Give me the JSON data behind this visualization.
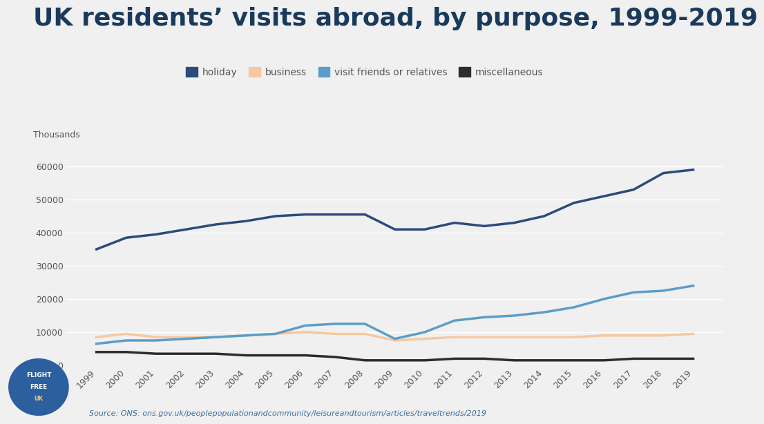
{
  "title": "UK residents’ visits abroad, by purpose, 1999-2019",
  "ylabel": "Thousands",
  "source": "Source: ONS: ons.gov.uk/peoplepopulationandcommunity/leisureandtourism/articles/traveltrends/2019",
  "years": [
    1999,
    2000,
    2001,
    2002,
    2003,
    2004,
    2005,
    2006,
    2007,
    2008,
    2009,
    2010,
    2011,
    2012,
    2013,
    2014,
    2015,
    2016,
    2017,
    2018,
    2019
  ],
  "holiday": [
    35000,
    38500,
    39500,
    41000,
    42500,
    43500,
    45000,
    45500,
    45500,
    45500,
    41000,
    41000,
    43000,
    42000,
    43000,
    45000,
    49000,
    51000,
    53000,
    58000,
    59000
  ],
  "business": [
    8500,
    9500,
    8500,
    8500,
    8500,
    9000,
    9500,
    10000,
    9500,
    9500,
    7500,
    8000,
    8500,
    8500,
    8500,
    8500,
    8500,
    9000,
    9000,
    9000,
    9500
  ],
  "vfr": [
    6500,
    7500,
    7500,
    8000,
    8500,
    9000,
    9500,
    12000,
    12500,
    12500,
    8000,
    10000,
    13500,
    14500,
    15000,
    16000,
    17500,
    20000,
    22000,
    22500,
    24000
  ],
  "misc": [
    4000,
    4000,
    3500,
    3500,
    3500,
    3000,
    3000,
    3000,
    2500,
    1500,
    1500,
    1500,
    2000,
    2000,
    1500,
    1500,
    1500,
    1500,
    2000,
    2000,
    2000
  ],
  "holiday_color": "#2c4a7c",
  "business_color": "#f5c9a0",
  "vfr_color": "#5b9dc9",
  "misc_color": "#2c2c2c",
  "bg_color": "#f0f0f0",
  "title_color": "#1a3a5c",
  "axis_color": "#555555",
  "source_color": "#3a6b9e",
  "ylim": [
    0,
    65000
  ],
  "yticks": [
    0,
    10000,
    20000,
    30000,
    40000,
    50000,
    60000
  ],
  "line_width": 2.5,
  "title_fontsize": 26,
  "legend_fontsize": 10,
  "tick_fontsize": 9,
  "ylabel_fontsize": 9,
  "source_fontsize": 8
}
